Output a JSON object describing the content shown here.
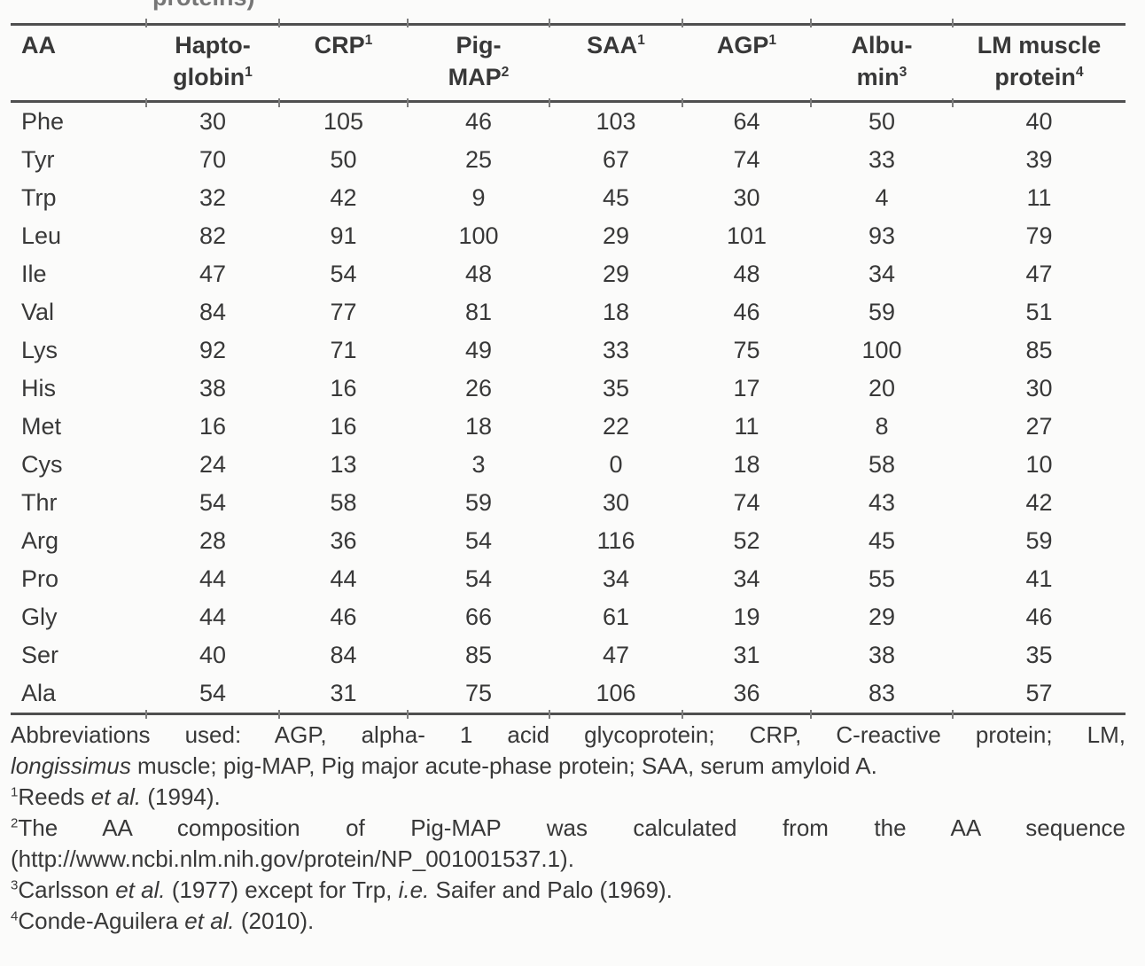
{
  "page": {
    "clipped_caption": "proteins)"
  },
  "table": {
    "columns": [
      {
        "id": "aa",
        "lines": [
          {
            "text": "AA"
          }
        ]
      },
      {
        "id": "haptoglobin",
        "lines": [
          {
            "text": "Hapto-"
          },
          {
            "text": "globin",
            "sup": "1"
          }
        ]
      },
      {
        "id": "crp",
        "lines": [
          {
            "text": "CRP",
            "sup": "1"
          }
        ]
      },
      {
        "id": "pig-map",
        "lines": [
          {
            "text": "Pig-"
          },
          {
            "text": "MAP",
            "sup": "2"
          }
        ]
      },
      {
        "id": "saa",
        "lines": [
          {
            "text": "SAA",
            "sup": "1"
          }
        ]
      },
      {
        "id": "agp",
        "lines": [
          {
            "text": "AGP",
            "sup": "1"
          }
        ]
      },
      {
        "id": "albumin",
        "lines": [
          {
            "text": "Albu-"
          },
          {
            "text": "min",
            "sup": "3"
          }
        ]
      },
      {
        "id": "lm-muscle",
        "lines": [
          {
            "text": "LM muscle"
          },
          {
            "text": "protein",
            "sup": "4"
          }
        ]
      }
    ],
    "rows": [
      {
        "aa": "Phe",
        "values": [
          "30",
          "105",
          "46",
          "103",
          "64",
          "50",
          "40"
        ]
      },
      {
        "aa": "Tyr",
        "values": [
          "70",
          "50",
          "25",
          "67",
          "74",
          "33",
          "39"
        ]
      },
      {
        "aa": "Trp",
        "values": [
          "32",
          "42",
          "9",
          "45",
          "30",
          "4",
          "11"
        ]
      },
      {
        "aa": "Leu",
        "values": [
          "82",
          "91",
          "100",
          "29",
          "101",
          "93",
          "79"
        ]
      },
      {
        "aa": "Ile",
        "values": [
          "47",
          "54",
          "48",
          "29",
          "48",
          "34",
          "47"
        ]
      },
      {
        "aa": "Val",
        "values": [
          "84",
          "77",
          "81",
          "18",
          "46",
          "59",
          "51"
        ]
      },
      {
        "aa": "Lys",
        "values": [
          "92",
          "71",
          "49",
          "33",
          "75",
          "100",
          "85"
        ]
      },
      {
        "aa": "His",
        "values": [
          "38",
          "16",
          "26",
          "35",
          "17",
          "20",
          "30"
        ]
      },
      {
        "aa": "Met",
        "values": [
          "16",
          "16",
          "18",
          "22",
          "11",
          "8",
          "27"
        ]
      },
      {
        "aa": "Cys",
        "values": [
          "24",
          "13",
          "3",
          "0",
          "18",
          "58",
          "10"
        ]
      },
      {
        "aa": "Thr",
        "values": [
          "54",
          "58",
          "59",
          "30",
          "74",
          "43",
          "42"
        ]
      },
      {
        "aa": "Arg",
        "values": [
          "28",
          "36",
          "54",
          "116",
          "52",
          "45",
          "59"
        ]
      },
      {
        "aa": "Pro",
        "values": [
          "44",
          "44",
          "54",
          "34",
          "34",
          "55",
          "41"
        ]
      },
      {
        "aa": "Gly",
        "values": [
          "44",
          "46",
          "66",
          "61",
          "19",
          "29",
          "46"
        ]
      },
      {
        "aa": "Ser",
        "values": [
          "40",
          "84",
          "85",
          "47",
          "31",
          "38",
          "35"
        ]
      },
      {
        "aa": "Ala",
        "values": [
          "54",
          "31",
          "75",
          "106",
          "36",
          "83",
          "57"
        ]
      }
    ]
  },
  "footnotes": [
    {
      "sup": "",
      "lines": [
        {
          "justify": true,
          "segments": [
            {
              "text": "Abbreviations used: AGP, alpha- 1 acid glycoprotein; CRP, C-reactive protein; LM,"
            }
          ]
        },
        {
          "justify": false,
          "segments": [
            {
              "text": "longissimus",
              "italic": true
            },
            {
              "text": " muscle; pig-MAP, Pig major acute-phase protein; SAA, serum amyloid A."
            }
          ]
        }
      ]
    },
    {
      "sup": "1",
      "lines": [
        {
          "justify": false,
          "segments": [
            {
              "text": "Reeds "
            },
            {
              "text": "et al.",
              "italic": true
            },
            {
              "text": " (1994)."
            }
          ]
        }
      ]
    },
    {
      "sup": "2",
      "lines": [
        {
          "justify": true,
          "segments": [
            {
              "text": "The AA composition of Pig-MAP was calculated from the AA sequence"
            }
          ]
        },
        {
          "justify": false,
          "segments": [
            {
              "text": "(http://www.ncbi.nlm.nih.gov/protein/NP_001001537.1)."
            }
          ]
        }
      ]
    },
    {
      "sup": "3",
      "lines": [
        {
          "justify": false,
          "segments": [
            {
              "text": "Carlsson "
            },
            {
              "text": "et al.",
              "italic": true
            },
            {
              "text": " (1977) except for Trp, "
            },
            {
              "text": "i.e.",
              "italic": true
            },
            {
              "text": " Saifer and Palo (1969)."
            }
          ]
        }
      ]
    },
    {
      "sup": "4",
      "lines": [
        {
          "justify": false,
          "segments": [
            {
              "text": "Conde-Aguilera "
            },
            {
              "text": "et al.",
              "italic": true
            },
            {
              "text": " (2010)."
            }
          ]
        }
      ]
    }
  ],
  "colors": {
    "text": "#383838",
    "rule": "#4f4f4f",
    "background": "#fbfbfa"
  }
}
